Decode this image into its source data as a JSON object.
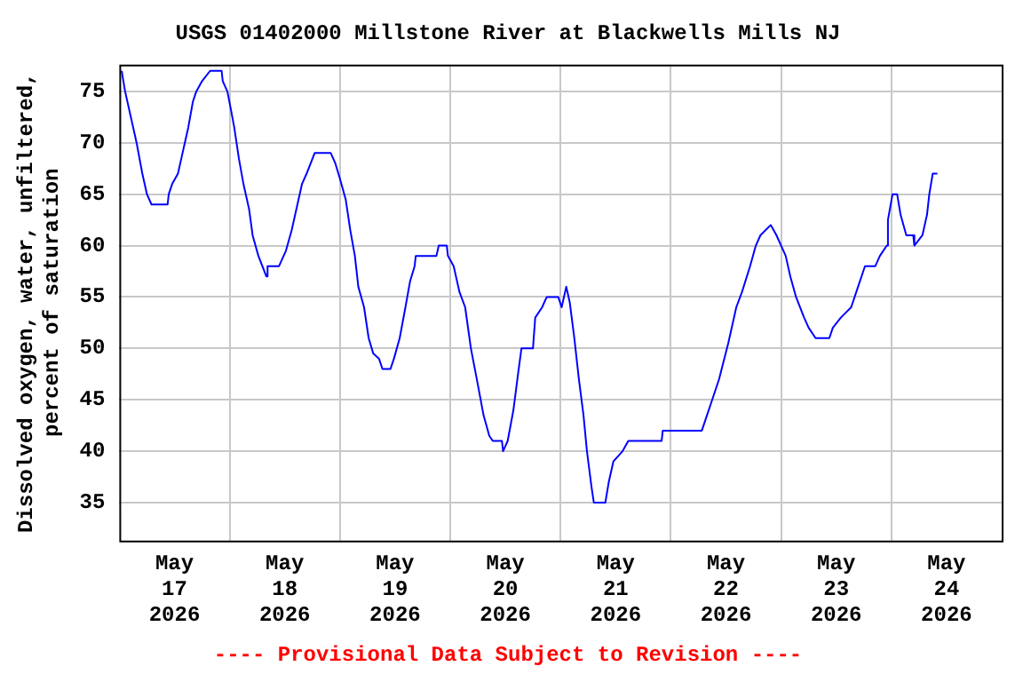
{
  "chart_data": {
    "type": "line",
    "title": "USGS 01402000 Millstone River at Blackwells Mills NJ",
    "ylabel": "Dissolved oxygen, water, unfiltered,\npercent of saturation",
    "annotations": [
      "---- Provisional Data Subject to Revision ----"
    ],
    "xlim": [
      "2026-05-17",
      "2026-05-25"
    ],
    "xticks": [
      {
        "value": "2026-05-17T12:00",
        "label": "May\n17\n2026"
      },
      {
        "value": "2026-05-18",
        "label": null
      },
      {
        "value": "2026-05-18T12:00",
        "label": "May\n18\n2026"
      },
      {
        "value": "2026-05-19",
        "label": null
      },
      {
        "value": "2026-05-19T12:00",
        "label": "May\n19\n2026"
      },
      {
        "value": "2026-05-20",
        "label": null
      },
      {
        "value": "2026-05-20T12:00",
        "label": "May\n20\n2026"
      },
      {
        "value": "2026-05-21",
        "label": null
      },
      {
        "value": "2026-05-21T12:00",
        "label": "May\n21\n2026"
      },
      {
        "value": "2026-05-22",
        "label": null
      },
      {
        "value": "2026-05-22T12:00",
        "label": "May\n22\n2026"
      },
      {
        "value": "2026-05-23",
        "label": null
      },
      {
        "value": "2026-05-23T12:00",
        "label": "May\n23\n2026"
      },
      {
        "value": "2026-05-24",
        "label": null
      },
      {
        "value": "2026-05-24T12:00",
        "label": "May\n24\n2026"
      }
    ],
    "ylim": [
      31.3,
      77.6
    ],
    "yticks": [
      35,
      40,
      45,
      50,
      55,
      60,
      65,
      70,
      75
    ],
    "grid": true,
    "legend": false,
    "marker": "none",
    "line_style": "solid",
    "x": [
      "2026-05-17T00:30",
      "2026-05-17T01:15",
      "2026-05-17T02:15",
      "2026-05-17T03:45",
      "2026-05-17T05:00",
      "2026-05-17T06:00",
      "2026-05-17T07:00",
      "2026-05-17T10:30",
      "2026-05-17T10:45",
      "2026-05-17T11:30",
      "2026-05-17T12:45",
      "2026-05-17T13:45",
      "2026-05-17T14:15",
      "2026-05-17T15:00",
      "2026-05-17T16:00",
      "2026-05-17T16:45",
      "2026-05-17T18:00",
      "2026-05-17T19:45",
      "2026-05-17T22:15",
      "2026-05-17T22:30",
      "2026-05-17T23:30",
      "2026-05-18T00:15",
      "2026-05-18T01:00",
      "2026-05-18T02:00",
      "2026-05-18T03:00",
      "2026-05-18T04:15",
      "2026-05-18T05:00",
      "2026-05-18T06:15",
      "2026-05-18T08:00",
      "2026-05-18T08:15",
      "2026-05-18T10:45",
      "2026-05-18T12:15",
      "2026-05-18T13:30",
      "2026-05-18T14:45",
      "2026-05-18T15:45",
      "2026-05-18T16:45",
      "2026-05-18T18:30",
      "2026-05-18T22:00",
      "2026-05-18T23:00",
      "2026-05-19T00:00",
      "2026-05-19T01:15",
      "2026-05-19T02:15",
      "2026-05-19T03:15",
      "2026-05-19T04:00",
      "2026-05-19T05:15",
      "2026-05-19T06:15",
      "2026-05-19T07:15",
      "2026-05-19T08:30",
      "2026-05-19T09:15",
      "2026-05-19T11:00",
      "2026-05-19T11:45",
      "2026-05-19T13:00",
      "2026-05-19T14:15",
      "2026-05-19T15:15",
      "2026-05-19T16:15",
      "2026-05-19T16:30",
      "2026-05-19T21:00",
      "2026-05-19T21:30",
      "2026-05-19T23:15",
      "2026-05-19T23:30",
      "2026-05-20T00:45",
      "2026-05-20T02:00",
      "2026-05-20T03:15",
      "2026-05-20T04:30",
      "2026-05-20T06:00",
      "2026-05-20T07:15",
      "2026-05-20T08:30",
      "2026-05-20T09:15",
      "2026-05-20T11:15",
      "2026-05-20T11:30",
      "2026-05-20T12:30",
      "2026-05-20T13:45",
      "2026-05-20T14:45",
      "2026-05-20T15:30",
      "2026-05-20T18:00",
      "2026-05-20T18:30",
      "2026-05-20T20:00",
      "2026-05-20T21:00",
      "2026-05-20T23:30",
      "2026-05-21T00:15",
      "2026-05-21T01:15",
      "2026-05-21T02:00",
      "2026-05-21T03:00",
      "2026-05-21T04:00",
      "2026-05-21T05:00",
      "2026-05-21T05:45",
      "2026-05-21T06:45",
      "2026-05-21T07:15",
      "2026-05-21T09:45",
      "2026-05-21T10:30",
      "2026-05-21T11:30",
      "2026-05-21T13:30",
      "2026-05-21T14:45",
      "2026-05-21T22:00",
      "2026-05-21T22:15",
      "2026-05-22T06:45",
      "2026-05-22T07:30",
      "2026-05-22T09:00",
      "2026-05-22T10:30",
      "2026-05-22T12:30",
      "2026-05-22T14:15",
      "2026-05-22T15:30",
      "2026-05-22T17:15",
      "2026-05-22T18:30",
      "2026-05-22T19:30",
      "2026-05-22T21:45",
      "2026-05-22T23:00",
      "2026-05-23T00:00",
      "2026-05-23T01:00",
      "2026-05-23T02:00",
      "2026-05-23T03:15",
      "2026-05-23T05:00",
      "2026-05-23T06:00",
      "2026-05-23T07:30",
      "2026-05-23T10:30",
      "2026-05-23T11:15",
      "2026-05-23T13:00",
      "2026-05-23T15:15",
      "2026-05-23T16:45",
      "2026-05-23T18:15",
      "2026-05-23T20:30",
      "2026-05-23T21:30",
      "2026-05-23T23:00",
      "2026-05-23T23:15",
      "2026-05-24T00:15",
      "2026-05-24T01:15",
      "2026-05-24T02:00",
      "2026-05-24T03:15",
      "2026-05-24T04:45",
      "2026-05-24T05:00",
      "2026-05-24T06:45",
      "2026-05-24T07:45",
      "2026-05-24T08:15",
      "2026-05-24T09:00",
      "2026-05-24T10:00"
    ],
    "series": [
      {
        "color": "#0000ff",
        "values": [
          77,
          75,
          73,
          70,
          67,
          65,
          64,
          64,
          65,
          66,
          67,
          69,
          70,
          71.5,
          74,
          75,
          76,
          77,
          77,
          76,
          75,
          73.3,
          71.5,
          68.5,
          66,
          63.5,
          61,
          59,
          57,
          58,
          58,
          59.5,
          61.5,
          64,
          66,
          67,
          69,
          69,
          68,
          66.5,
          64.5,
          61.5,
          59,
          56,
          54,
          51,
          49.5,
          49,
          48,
          48,
          49,
          51,
          54,
          56.5,
          58,
          59,
          59,
          60,
          60,
          59,
          58,
          55.5,
          54,
          50,
          46.5,
          43.5,
          41.5,
          41,
          41,
          40,
          41,
          44,
          47.5,
          50,
          50,
          53,
          54,
          55,
          55,
          54,
          56,
          54.5,
          51,
          47,
          43.5,
          40,
          36.5,
          35,
          35,
          37,
          39,
          40,
          41,
          41,
          42,
          42,
          43,
          45,
          47,
          50.5,
          54,
          55.5,
          58,
          60,
          61,
          62,
          61,
          60,
          59,
          57,
          55,
          53,
          52,
          51,
          51,
          52,
          53,
          54,
          56,
          58,
          58,
          59,
          60,
          62.5,
          65,
          65,
          63,
          61,
          61,
          60,
          61,
          63,
          65,
          67,
          67
        ]
      }
    ]
  }
}
